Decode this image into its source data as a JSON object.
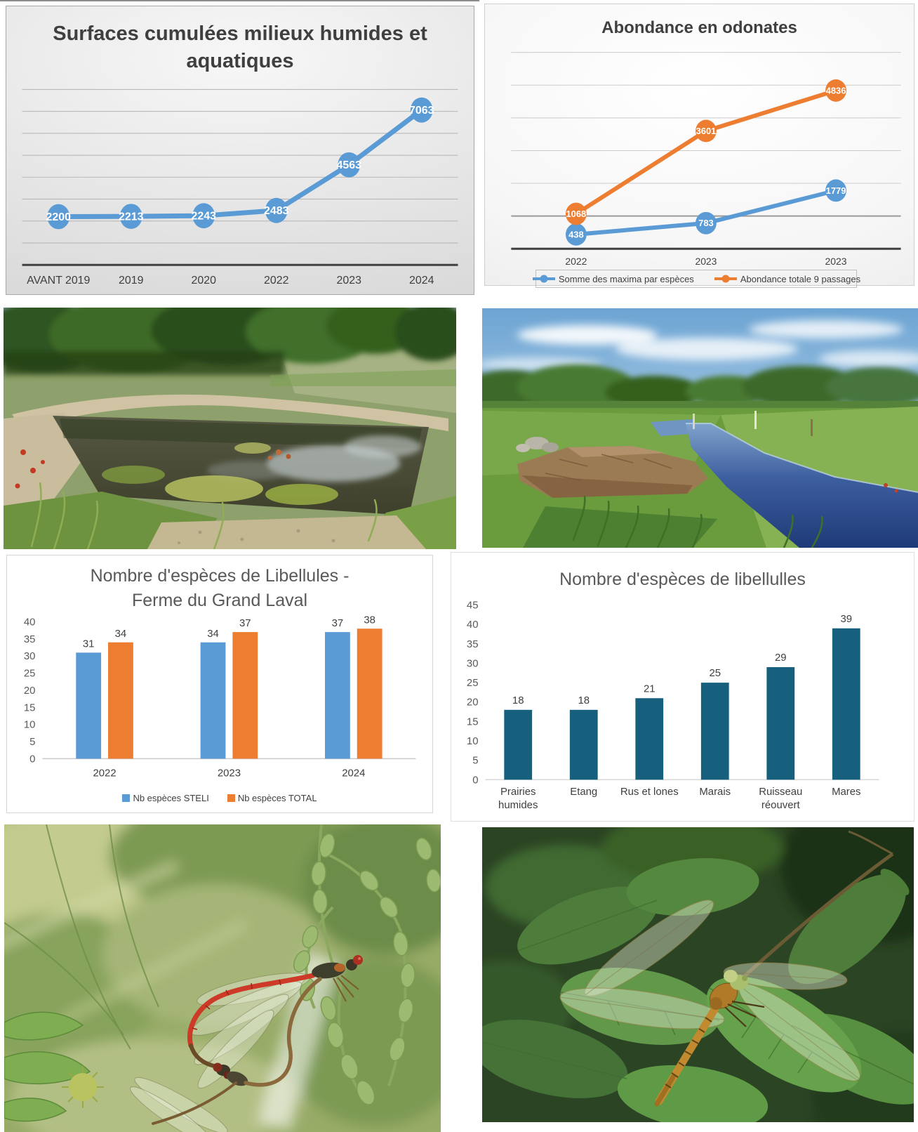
{
  "chart_data": [
    {
      "type": "line",
      "title": "Surfaces cumulées milieux humides et aquatiques",
      "categories": [
        "AVANT 2019",
        "2019",
        "2020",
        "2022",
        "2023",
        "2024"
      ],
      "values": [
        2200,
        2213,
        2243,
        2483,
        4563,
        7063
      ],
      "ylim": [
        0,
        8000
      ],
      "grid_step": 1000,
      "grid": true,
      "line_color": "#5B9BD5",
      "data_labels": "white-on-marker"
    },
    {
      "type": "line",
      "title": "Abondance en odonates",
      "categories": [
        "2022",
        "2023",
        "2023"
      ],
      "series": [
        {
          "name": "Somme des maxima par espèces",
          "color": "#5B9BD5",
          "values": [
            438,
            783,
            1779
          ]
        },
        {
          "name": "Abondance totale 9 passages",
          "color": "#ED7D31",
          "values": [
            1068,
            3601,
            4836
          ]
        }
      ],
      "ylim": [
        0,
        6000
      ],
      "grid_step": 1000,
      "grid": true,
      "legend_position": "bottom"
    },
    {
      "type": "bar",
      "title": "Nombre d'espèces de Libellules - Ferme du Grand Laval",
      "categories": [
        "2022",
        "2023",
        "2024"
      ],
      "series": [
        {
          "name": "Nb espèces STELI",
          "color": "#5B9BD5",
          "values": [
            31,
            34,
            37
          ]
        },
        {
          "name": "Nb espèces TOTAL",
          "color": "#ED7D31",
          "values": [
            34,
            37,
            38
          ]
        }
      ],
      "ylim": [
        0,
        40
      ],
      "tick_step": 5,
      "grid": false,
      "legend_position": "bottom"
    },
    {
      "type": "bar",
      "title": "Nombre d'espèces de libellulles",
      "categories": [
        "Prairies humides",
        "Etang",
        "Rus et lones",
        "Marais",
        "Ruisseau réouvert",
        "Mares"
      ],
      "values": [
        18,
        18,
        21,
        25,
        29,
        39
      ],
      "bar_color": "#16607E",
      "ylim": [
        0,
        45
      ],
      "tick_step": 5,
      "grid": false
    }
  ],
  "photos": {
    "top_left": "pond-in-meadow",
    "top_right": "reopened-stream-channel",
    "bottom_left": "mating-red-damselflies",
    "bottom_right": "dragonfly-on-leaves"
  }
}
